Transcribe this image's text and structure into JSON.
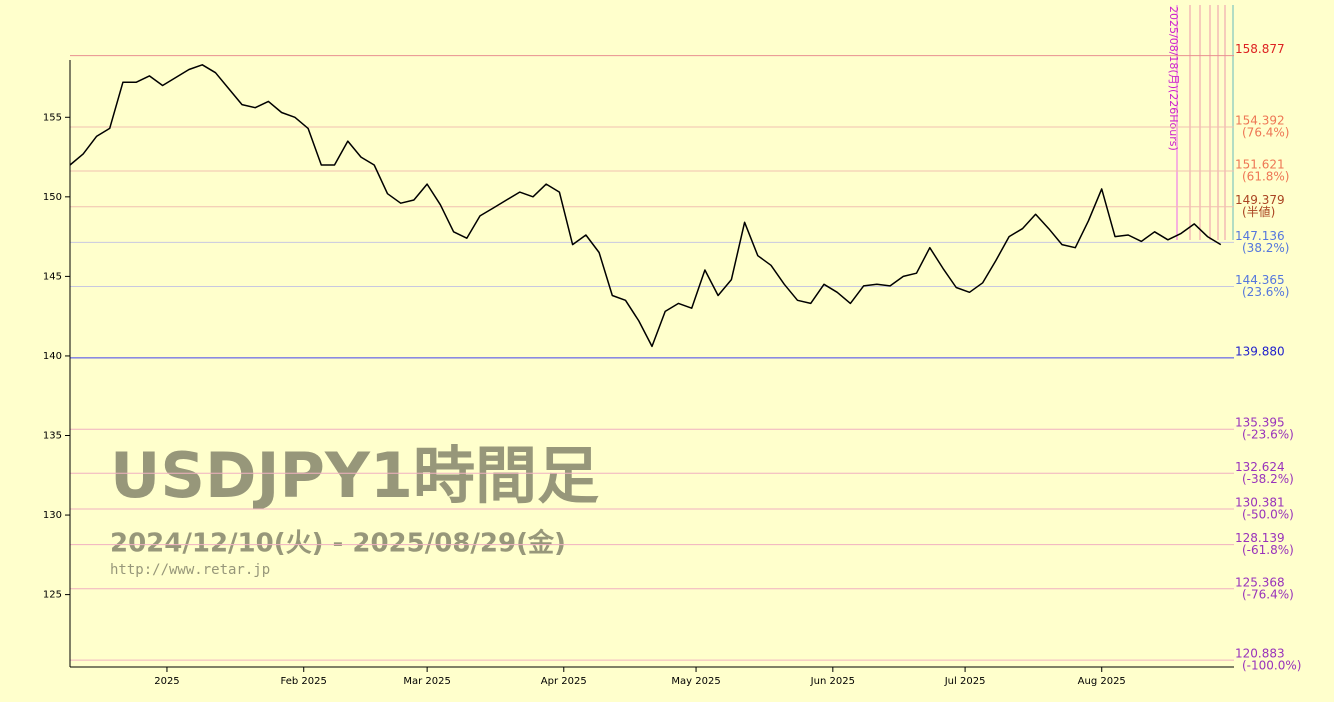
{
  "chart_data": {
    "type": "line",
    "watermark": {
      "title": "USDJPY1時間足",
      "period": "2024/12/10(火) - 2025/08/29(金)",
      "url": "http://www.retar.jp"
    },
    "annotation": "2025/08/18(月)(226Hours)",
    "xlim": [
      0,
      88
    ],
    "xticks": [
      {
        "value": 7.33,
        "label": "2025"
      },
      {
        "value": 17.67,
        "label": "Feb 2025"
      },
      {
        "value": 27,
        "label": "Mar 2025"
      },
      {
        "value": 37.33,
        "label": "Apr 2025"
      },
      {
        "value": 47.33,
        "label": "May 2025"
      },
      {
        "value": 57.67,
        "label": "Jun 2025"
      },
      {
        "value": 67.67,
        "label": "Jul 2025"
      },
      {
        "value": 78,
        "label": "Aug 2025"
      }
    ],
    "ylim": [
      120.45,
      158.6
    ],
    "yticks": [
      125,
      130,
      135,
      140,
      145,
      150,
      155
    ],
    "series": [
      {
        "name": "USDJPY",
        "color": "#000000",
        "values": [
          152.0,
          152.7,
          153.8,
          154.3,
          157.2,
          157.2,
          157.6,
          157.0,
          157.5,
          158.0,
          158.3,
          157.8,
          156.8,
          155.8,
          155.6,
          156.0,
          155.3,
          155.0,
          154.3,
          152.0,
          152.0,
          153.5,
          152.5,
          152.0,
          150.2,
          149.6,
          149.8,
          150.8,
          149.5,
          147.8,
          147.4,
          148.8,
          149.3,
          149.8,
          150.3,
          150.0,
          150.8,
          150.3,
          147.0,
          147.6,
          146.5,
          143.8,
          143.5,
          142.2,
          140.6,
          142.8,
          143.3,
          143.0,
          145.4,
          143.8,
          144.8,
          148.4,
          146.3,
          145.7,
          144.5,
          143.5,
          143.3,
          144.5,
          144.0,
          143.3,
          144.4,
          144.5,
          144.4,
          145.0,
          145.2,
          146.8,
          145.5,
          144.3,
          144.0,
          144.6,
          146.0,
          147.5,
          148.0,
          148.9,
          148.0,
          147.0,
          146.8,
          148.5,
          150.5,
          147.5,
          147.6,
          147.2,
          147.8,
          147.3,
          147.7,
          148.3,
          147.5,
          147.0
        ]
      }
    ],
    "levels": [
      {
        "value": 158.877,
        "label": "158.877",
        "color": "#dd2222",
        "line": "#e89090"
      },
      {
        "value": 154.392,
        "label": "154.392",
        "ratio": "(76.4%)",
        "color": "#ee7755",
        "line": "#f0c0b0"
      },
      {
        "value": 151.621,
        "label": "151.621",
        "ratio": "(61.8%)",
        "color": "#ee7755",
        "line": "#f0c0b0"
      },
      {
        "value": 149.379,
        "label": "149.379",
        "ratio": "(半値)",
        "color": "#aa4422",
        "line": "#f0c0b0"
      },
      {
        "value": 147.136,
        "label": "147.136",
        "ratio": "(38.2%)",
        "color": "#5577dd",
        "line": "#c8c8e0"
      },
      {
        "value": 144.365,
        "label": "144.365",
        "ratio": "(23.6%)",
        "color": "#5577dd",
        "line": "#c8c8e0"
      },
      {
        "value": 139.88,
        "label": "139.880",
        "color": "#2222cc",
        "line": "#4444ee"
      },
      {
        "value": 135.395,
        "label": "135.395",
        "ratio": "(-23.6%)",
        "color": "#9933bb",
        "line": "#f0b0c0"
      },
      {
        "value": 132.624,
        "label": "132.624",
        "ratio": "(-38.2%)",
        "color": "#9933bb",
        "line": "#f0b0c0"
      },
      {
        "value": 130.381,
        "label": "130.381",
        "ratio": "(-50.0%)",
        "color": "#9933bb",
        "line": "#f0b0c0"
      },
      {
        "value": 128.139,
        "label": "128.139",
        "ratio": "(-61.8%)",
        "color": "#9933bb",
        "line": "#f0b0c0"
      },
      {
        "value": 125.368,
        "label": "125.368",
        "ratio": "(-76.4%)",
        "color": "#9933bb",
        "line": "#f0b0c0"
      },
      {
        "value": 120.883,
        "label": "120.883",
        "ratio": "(-100.0%)",
        "color": "#9933bb",
        "line": "#f0b0c0"
      }
    ]
  }
}
